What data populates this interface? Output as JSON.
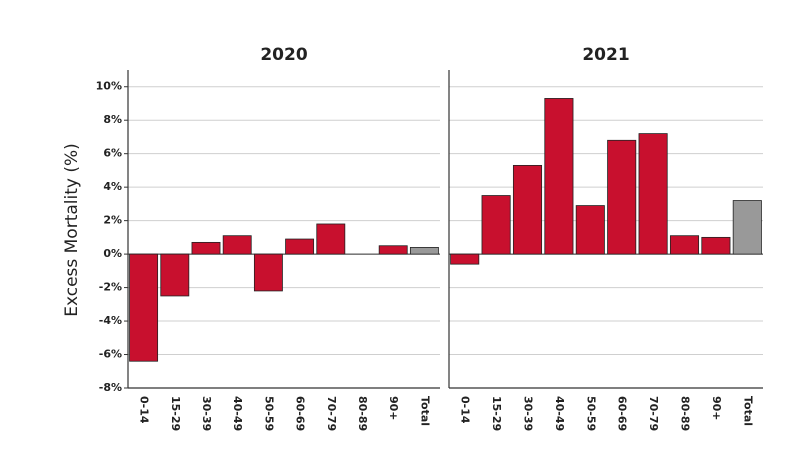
{
  "chart_data": [
    {
      "type": "bar",
      "title": "2020",
      "ylabel": "Excess Mortality (%)",
      "categories": [
        "0-14",
        "15-29",
        "30-39",
        "40-49",
        "50-59",
        "60-69",
        "70-79",
        "80-89",
        "90+",
        "Total"
      ],
      "values": [
        -6.4,
        -2.5,
        0.7,
        1.1,
        -2.2,
        0.9,
        1.8,
        0,
        0.5,
        0.4
      ],
      "colors": [
        "#c8102e",
        "#c8102e",
        "#c8102e",
        "#c8102e",
        "#c8102e",
        "#c8102e",
        "#c8102e",
        "#c8102e",
        "#c8102e",
        "#999999"
      ],
      "ylim": [
        -8,
        11
      ],
      "yticks": [
        {
          "value": -8,
          "label": "-8%"
        },
        {
          "value": -6,
          "label": "-6%"
        },
        {
          "value": -4,
          "label": "-4%"
        },
        {
          "value": -2,
          "label": "-2%"
        },
        {
          "value": 0,
          "label": "0%"
        },
        {
          "value": 2,
          "label": "2%"
        },
        {
          "value": 4,
          "label": "4%"
        },
        {
          "value": 6,
          "label": "6%"
        },
        {
          "value": 8,
          "label": "8%"
        },
        {
          "value": 10,
          "label": "10%"
        }
      ],
      "grid": true
    },
    {
      "type": "bar",
      "title": "2021",
      "categories": [
        "0-14",
        "15-29",
        "30-39",
        "40-49",
        "50-59",
        "60-69",
        "70-79",
        "80-89",
        "90+",
        "Total"
      ],
      "values": [
        -0.6,
        3.5,
        5.3,
        9.3,
        2.9,
        6.8,
        7.2,
        1.1,
        1.0,
        3.2
      ],
      "colors": [
        "#c8102e",
        "#c8102e",
        "#c8102e",
        "#c8102e",
        "#c8102e",
        "#c8102e",
        "#c8102e",
        "#c8102e",
        "#c8102e",
        "#999999"
      ],
      "ylim": [
        -8,
        11
      ],
      "yticks": [
        -8,
        -6,
        -4,
        -2,
        0,
        2,
        4,
        6,
        8,
        10
      ],
      "grid": true
    }
  ]
}
